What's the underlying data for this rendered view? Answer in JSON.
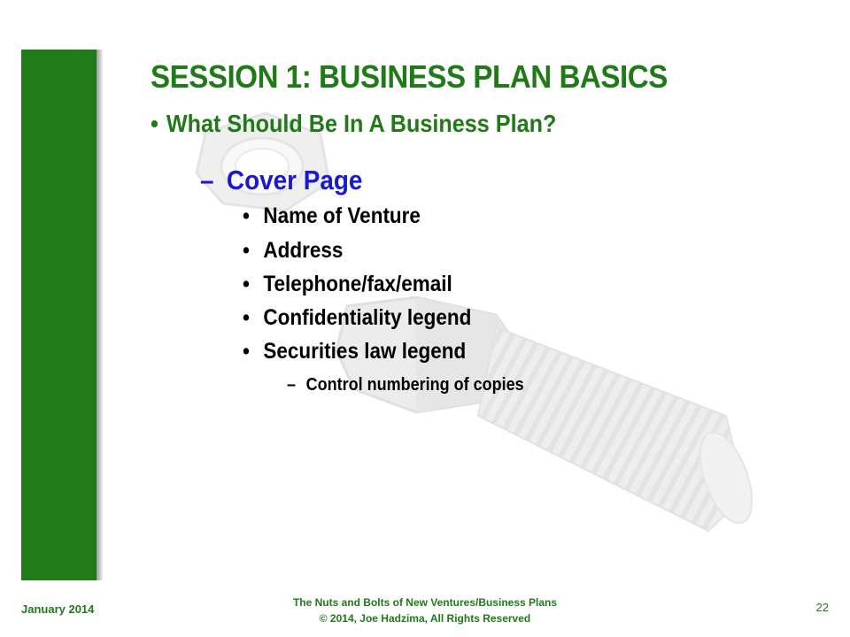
{
  "slide": {
    "title": "SESSION 1:  BUSINESS PLAN BASICS",
    "level1": {
      "bullet": "•",
      "text": "What Should Be In A Business Plan?"
    },
    "level2": {
      "dash": "–",
      "text": "Cover Page"
    },
    "level3": [
      {
        "bullet": "•",
        "text": "Name of Venture"
      },
      {
        "bullet": "•",
        "text": "Address"
      },
      {
        "bullet": "•",
        "text": "Telephone/fax/email"
      },
      {
        "bullet": "•",
        "text": "Confidentiality legend"
      },
      {
        "bullet": "•",
        "text": "Securities law legend"
      }
    ],
    "level4": {
      "dash": "–",
      "text": "Control numbering of copies"
    }
  },
  "footer": {
    "date": "January 2014",
    "line1": "The Nuts and Bolts of New Ventures/Business Plans",
    "line2": "© 2014, Joe Hadzima, All Rights Reserved",
    "page_number": "22"
  },
  "colors": {
    "green": "#1f7a17",
    "blue": "#1a1acc",
    "text": "#000000"
  },
  "icons": {
    "watermark": "bolt-and-nut-icon"
  }
}
